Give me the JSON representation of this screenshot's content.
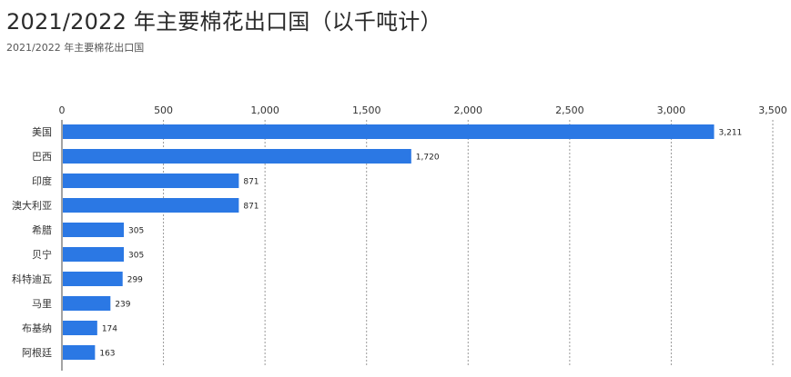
{
  "title": "2021/2022 年主要棉花出口国（以千吨计）",
  "subtitle": "2021/2022 年主要棉花出口国",
  "colors": {
    "bar": "#2b78e4",
    "grid": "#9a9a9a",
    "axis": "#666666"
  },
  "chart_data": {
    "type": "bar",
    "orientation": "horizontal",
    "categories": [
      "美国",
      "巴西",
      "印度",
      "澳大利亚",
      "希腊",
      "贝宁",
      "科特迪瓦",
      "马里",
      "布基纳",
      "阿根廷"
    ],
    "values": [
      3211,
      1720,
      871,
      871,
      305,
      305,
      299,
      239,
      174,
      163
    ],
    "value_labels": [
      "3,211",
      "1,720",
      "871",
      "871",
      "305",
      "305",
      "299",
      "239",
      "174",
      "163"
    ],
    "xlim": [
      0,
      3500
    ],
    "xticks": [
      0,
      500,
      1000,
      1500,
      2000,
      2500,
      3000,
      3500
    ],
    "xtick_labels": [
      "0",
      "500",
      "1,000",
      "1,500",
      "2,000",
      "2,500",
      "3,000",
      "3,500"
    ],
    "axis_position": "top",
    "grid": true
  }
}
